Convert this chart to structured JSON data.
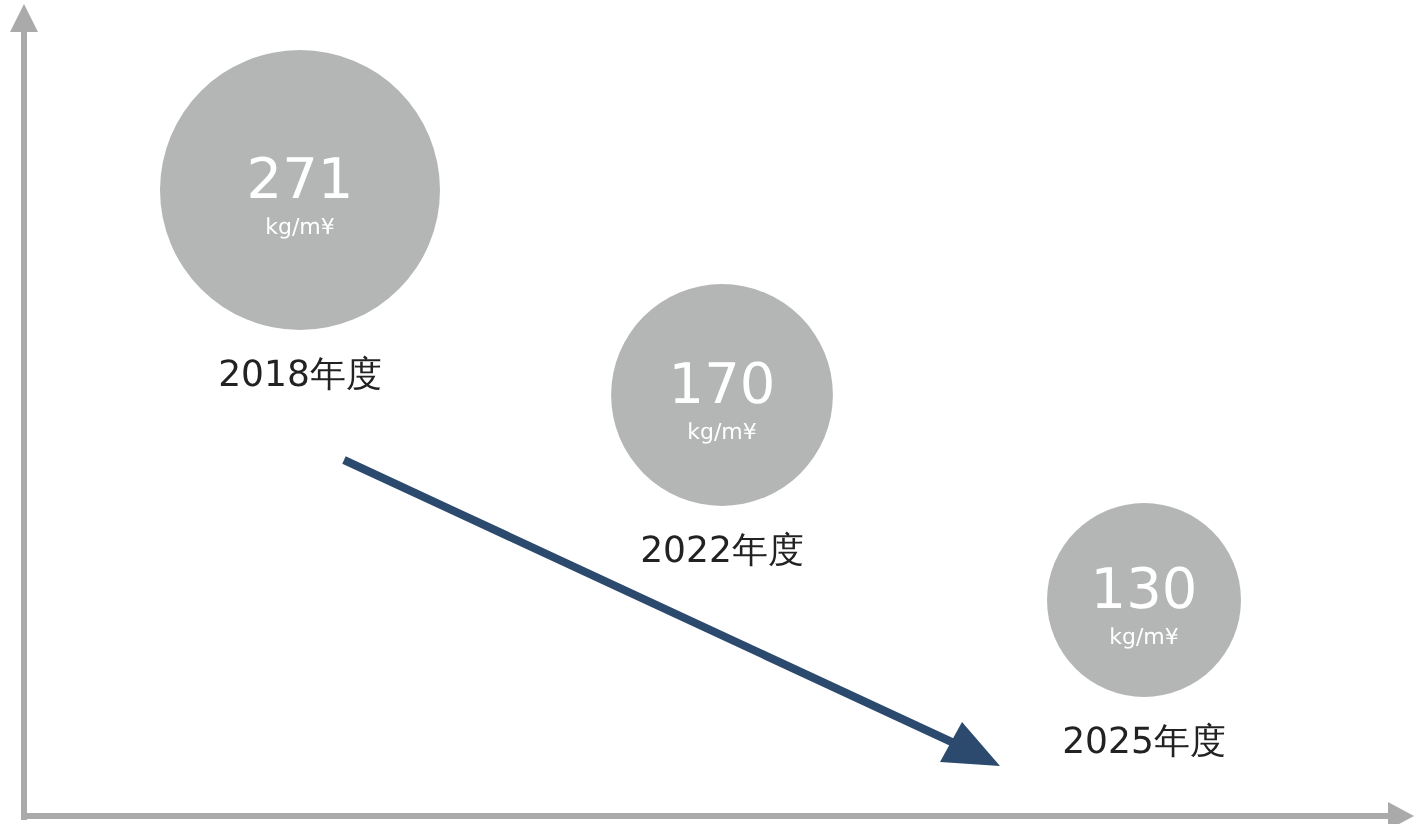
{
  "chart_data": {
    "type": "other",
    "categories": [
      "2018年度",
      "2022年度",
      "2025年度"
    ],
    "values": [
      271,
      170,
      130
    ],
    "value_labels": [
      "271 kg/m¥",
      "170 kg/m¥",
      "130 kg/m¥"
    ],
    "color": "#b4b6b5"
  }
}
